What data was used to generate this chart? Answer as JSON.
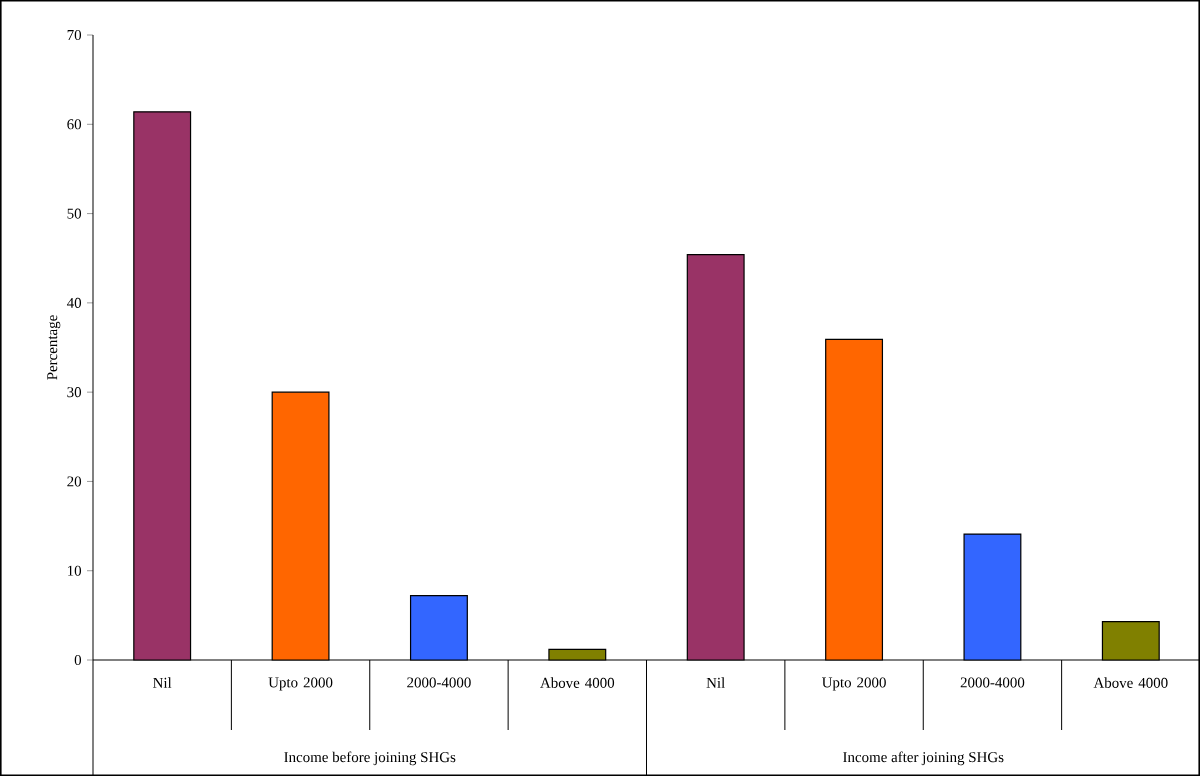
{
  "chart_data": {
    "type": "bar",
    "ylabel": "Percentage",
    "categories": [
      "Nil",
      "Upto 2000",
      "2000-4000",
      "Above 4000",
      "Nil",
      "Upto 2000",
      "2000-4000",
      "Above 4000"
    ],
    "values": [
      61.4,
      30,
      7.2,
      1.2,
      45.4,
      35.9,
      14.1,
      4.3
    ],
    "colors": [
      "#993366",
      "#ff6600",
      "#3366ff",
      "#808000",
      "#993366",
      "#ff6600",
      "#3366ff",
      "#808000"
    ],
    "ylim": [
      0,
      70
    ],
    "yticks": [
      0,
      10,
      20,
      30,
      40,
      50,
      60,
      70
    ],
    "annotations": [
      "Income before joining SHGs",
      "Income after joining SHGs"
    ]
  }
}
